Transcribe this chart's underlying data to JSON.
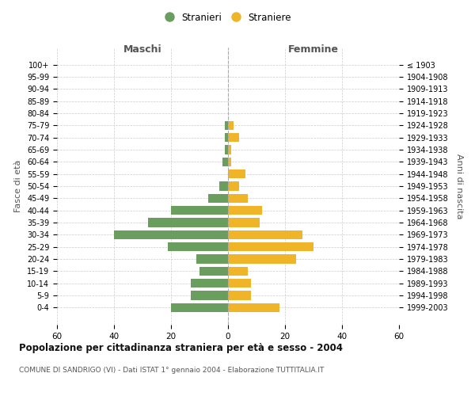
{
  "age_groups": [
    "0-4",
    "5-9",
    "10-14",
    "15-19",
    "20-24",
    "25-29",
    "30-34",
    "35-39",
    "40-44",
    "45-49",
    "50-54",
    "55-59",
    "60-64",
    "65-69",
    "70-74",
    "75-79",
    "80-84",
    "85-89",
    "90-94",
    "95-99",
    "100+"
  ],
  "birth_years": [
    "1999-2003",
    "1994-1998",
    "1989-1993",
    "1984-1988",
    "1979-1983",
    "1974-1978",
    "1969-1973",
    "1964-1968",
    "1959-1963",
    "1954-1958",
    "1949-1953",
    "1944-1948",
    "1939-1943",
    "1934-1938",
    "1929-1933",
    "1924-1928",
    "1919-1923",
    "1914-1918",
    "1909-1913",
    "1904-1908",
    "≤ 1903"
  ],
  "maschi": [
    20,
    13,
    13,
    10,
    11,
    21,
    40,
    28,
    20,
    7,
    3,
    0,
    2,
    1,
    1,
    1,
    0,
    0,
    0,
    0,
    0
  ],
  "femmine": [
    18,
    8,
    8,
    7,
    24,
    30,
    26,
    11,
    12,
    7,
    4,
    6,
    1,
    1,
    4,
    2,
    0,
    0,
    0,
    0,
    0
  ],
  "maschi_color": "#6a9e5e",
  "femmine_color": "#f0b429",
  "title": "Popolazione per cittadinanza straniera per età e sesso - 2004",
  "subtitle": "COMUNE DI SANDRIGO (VI) - Dati ISTAT 1° gennaio 2004 - Elaborazione TUTTITALIA.IT",
  "xlabel_left": "Maschi",
  "xlabel_right": "Femmine",
  "ylabel_left": "Fasce di età",
  "ylabel_right": "Anni di nascita",
  "legend_maschi": "Stranieri",
  "legend_femmine": "Straniere",
  "xlim": 60,
  "background_color": "#ffffff",
  "grid_color": "#cccccc"
}
